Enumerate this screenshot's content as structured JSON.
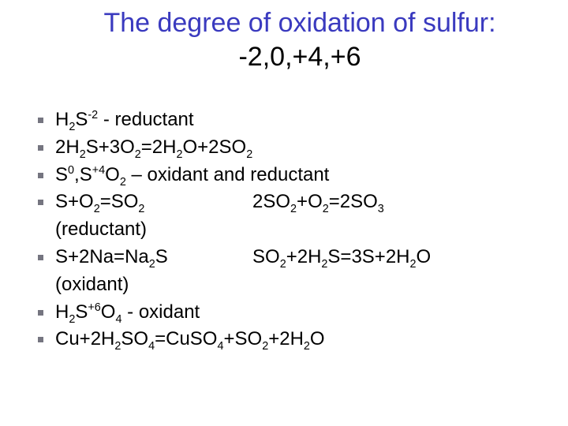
{
  "title_line1": "The degree of oxidation of sulfur:",
  "title_line2": "-2,0,+4,+6",
  "title_color": "#3a3abf",
  "body_color": "#000000",
  "bullet_color": "#757580",
  "background_color": "#ffffff",
  "title_fontsize": 34,
  "body_fontsize": 24,
  "items": {
    "i0": {
      "pre": "H",
      "sub1": "2",
      "mid": "S",
      "sup1": "-2",
      "post": " - reductant"
    },
    "i1": {
      "text_a": "2H",
      "s_a": "2",
      "text_b": "S+3O",
      "s_b": "2",
      "text_c": "=2H",
      "s_c": "2",
      "text_d": "O+2SO",
      "s_d": "2"
    },
    "i2": {
      "a": "S",
      "sup_a": "0",
      "comma": ",S",
      "sup_b": "+4",
      "b": "O",
      "sub_b": "2",
      "tail": " – oxidant and reductant"
    },
    "i3": {
      "left": {
        "a": "S+O",
        "sa": "2",
        "b": "=SO",
        "sb": "2"
      },
      "right": {
        "a": "2SO",
        "sa": "2",
        "b": "+O",
        "sb": "2",
        "c": "=2SO",
        "sc": "3"
      },
      "note": "(reductant)"
    },
    "i4": {
      "left": {
        "a": "S+2Na=Na",
        "sa": "2",
        "b": "S"
      },
      "right": {
        "a": "SO",
        "sa": "2",
        "b": "+2H",
        "sb": "2",
        "c": "S=3S+2H",
        "sc": "2",
        "d": "O"
      },
      "note": "(oxidant)"
    },
    "i5": {
      "a": "H",
      "sa": "2",
      "b": "S",
      "supb": "+6",
      "c": "O",
      "sc": "4",
      "tail": "  - oxidant"
    },
    "i6": {
      "a": "Cu+2H",
      "sa": "2",
      "b": "SO",
      "sb": "4",
      "c": "=CuSO",
      "sc": "4",
      "d": "+SO",
      "sd": "2",
      "e": "+2H",
      "se": "2",
      "f": "O"
    }
  }
}
